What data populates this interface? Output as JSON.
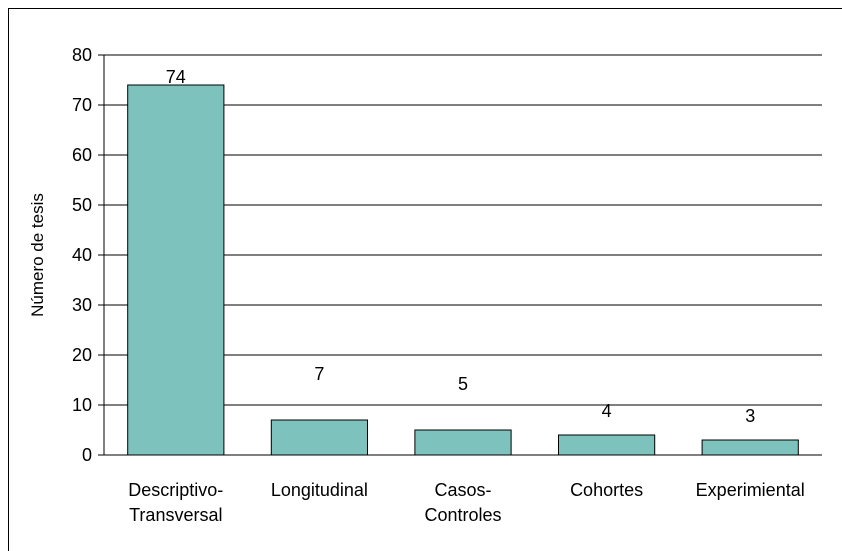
{
  "chart_data": {
    "type": "bar",
    "title": "",
    "xlabel": "",
    "ylabel": "Número de tesis",
    "ylim": [
      0,
      80
    ],
    "yticks": [
      0,
      10,
      20,
      30,
      40,
      50,
      60,
      70,
      80
    ],
    "grid": "horizontal",
    "categories": [
      [
        "Descriptivo-",
        "Transversal"
      ],
      [
        "Longitudinal"
      ],
      [
        "Casos-",
        "Controles"
      ],
      [
        "Cohortes"
      ],
      [
        "Experimiental"
      ]
    ],
    "values": [
      74,
      7,
      5,
      4,
      3
    ],
    "data_labels": [
      "74",
      "7",
      "5",
      "4",
      "3"
    ],
    "colors": {
      "bar_fill": "#7dc2bd",
      "bar_stroke": "#000000",
      "grid": "#000000"
    }
  }
}
